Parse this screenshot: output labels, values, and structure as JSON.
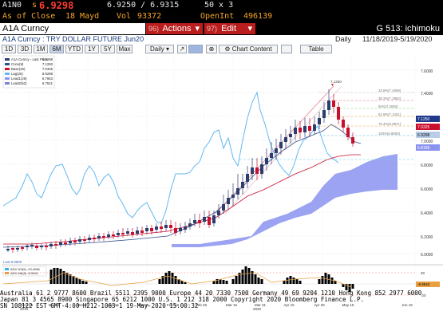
{
  "ticker": {
    "security": "A1N0",
    "price_prefix": "s",
    "last_price": "6.9298",
    "bid_ask": "6.9250 / 6.9315",
    "size": "50 x 3",
    "close_label": "As of Close",
    "close_date": "18 Mayd",
    "vol_label": "Vol",
    "volume": "93372",
    "openint_label": "OpenInt",
    "open_interest": "496139"
  },
  "command_bar": {
    "input_value": "A1A Curncy",
    "actions_num": "96)",
    "actions_label": "Actions",
    "edit_num": "97)",
    "edit_label": "Edit",
    "page_title": "G 513: ichimoku"
  },
  "info_bar": {
    "security_desc": "A1A Curncy : TRY DOLLAR FUTURE Jun20",
    "frequency": "Daily",
    "date_range": "11/18/2019-5/19/2020"
  },
  "toolbar": {
    "periods": [
      "1D",
      "3D",
      "1M",
      "6M",
      "YTD",
      "1Y",
      "5Y",
      "Max"
    ],
    "active_period": "6M",
    "frequency_select": "Daily",
    "chart_content": "Chart Content",
    "table": "Table"
  },
  "legend": {
    "title": "A1A Curncy - Last Price",
    "items": [
      "Conv(9)",
      "Base(26)",
      "Lag(26)",
      "Lead1(26)",
      "Lead2(52)"
    ],
    "values": [
      "6.9298",
      "7.1250",
      "7.0325",
      "6.9298",
      "6.7663",
      "6.7521"
    ]
  },
  "sub_legend": {
    "items": [
      "ADX 9/2(5) -23.4286",
      "ADX MA(5) -6.9942"
    ]
  },
  "colors": {
    "accent_amber": "#f4a52a",
    "accent_red": "#b91d1d",
    "candle_up": "#2e3d6e",
    "candle_down": "#c8102e",
    "lag_line": "#62b8f2",
    "cloud": "#8a93f0",
    "histogram_pos": "#2ab7e8",
    "histogram_neg": "#c020c0"
  },
  "chart_data": {
    "type": "candlestick",
    "price_axis": [
      "7.6000",
      "7.4000",
      "7.2000",
      "7.0000",
      "6.8000",
      "6.6000",
      "6.4000",
      "6.2000",
      "6.0000"
    ],
    "right_labels": [
      "7.1250",
      "7.0325",
      "6.9298",
      "6.8188"
    ],
    "fib_labels": [
      "23.6%(7.4059)",
      "38.2%(7.2962)",
      "50%(7.2083)",
      "61.8%(7.1201)",
      "76.4%(6.9971)",
      "100%(6.8500)"
    ],
    "date_axis": [
      "Nov 29",
      "Dec 16",
      "Dec 31",
      "Jan 15",
      "Jan 31",
      "Feb 14",
      "Feb 28",
      "Mar 16",
      "Mar 31",
      "Apr 15",
      "Apr 30",
      "May 15",
      "Jun 15"
    ],
    "year_axis": [
      "2019",
      "2020"
    ],
    "high_marker": "7.1250",
    "low_marker": "Low 6.0020",
    "sub_axis": [
      "20",
      "0",
      "-20"
    ],
    "sub_right_label": "-6.9942"
  },
  "bottom_lines": [
    "Australia 61 2 9777 8600 Brazil 5511 2395 9000 Europe 44 20 7330 7500 Germany 49 69 9204 1210 Hong Kong 852 2977 6000",
    "Japan 81 3 4565 8900      Singapore 65 6212 1000     U.S. 1 212 318 2000       Copyright 2020 Bloomberg Finance L.P.",
    "                                                                      SN 108122 EST  GMT-4:00 H212-1063-1 19-May-2020 15:00:32"
  ]
}
